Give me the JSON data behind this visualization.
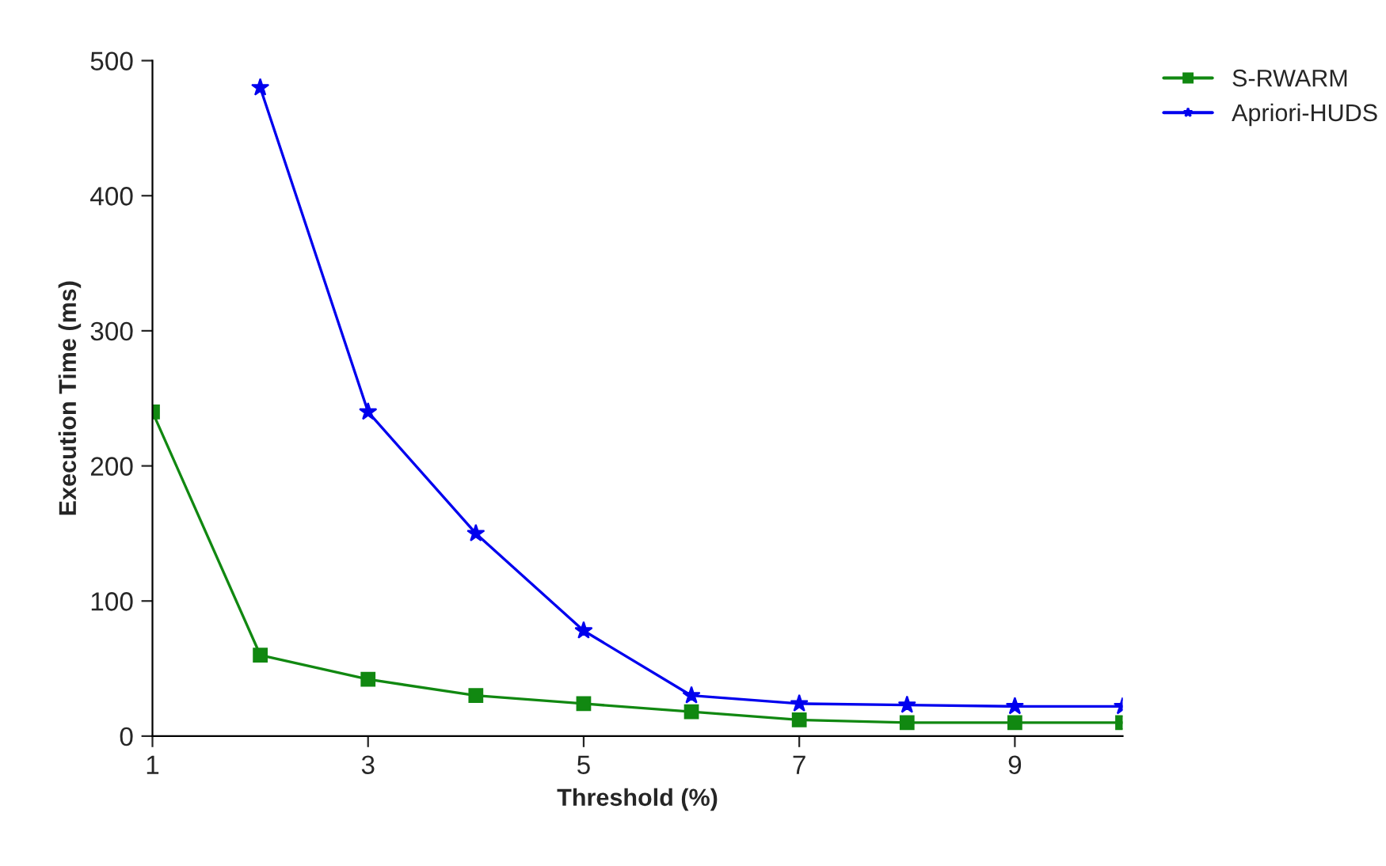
{
  "chart_data": {
    "type": "line",
    "xlabel": "Threshold (%)",
    "ylabel": "Execution Time (ms)",
    "xlim": [
      1,
      10
    ],
    "xticks": [
      1,
      3,
      5,
      7,
      9
    ],
    "ylim": [
      0,
      500
    ],
    "yticks": [
      0,
      100,
      200,
      300,
      400,
      500
    ],
    "grid": false,
    "legend": "top right",
    "series": [
      {
        "name": "S-RWARM",
        "color": "#118811",
        "marker": "square",
        "x": [
          1,
          2,
          3,
          4,
          5,
          6,
          7,
          8,
          9,
          10
        ],
        "values": [
          240,
          60,
          42,
          30,
          24,
          18,
          12,
          10,
          10,
          10
        ]
      },
      {
        "name": "Apriori-HUDS",
        "color": "#0000ee",
        "marker": "star",
        "x": [
          2,
          3,
          4,
          5,
          6,
          7,
          8,
          9,
          10
        ],
        "values": [
          480,
          240,
          150,
          78,
          30,
          24,
          23,
          22,
          22
        ]
      }
    ]
  }
}
